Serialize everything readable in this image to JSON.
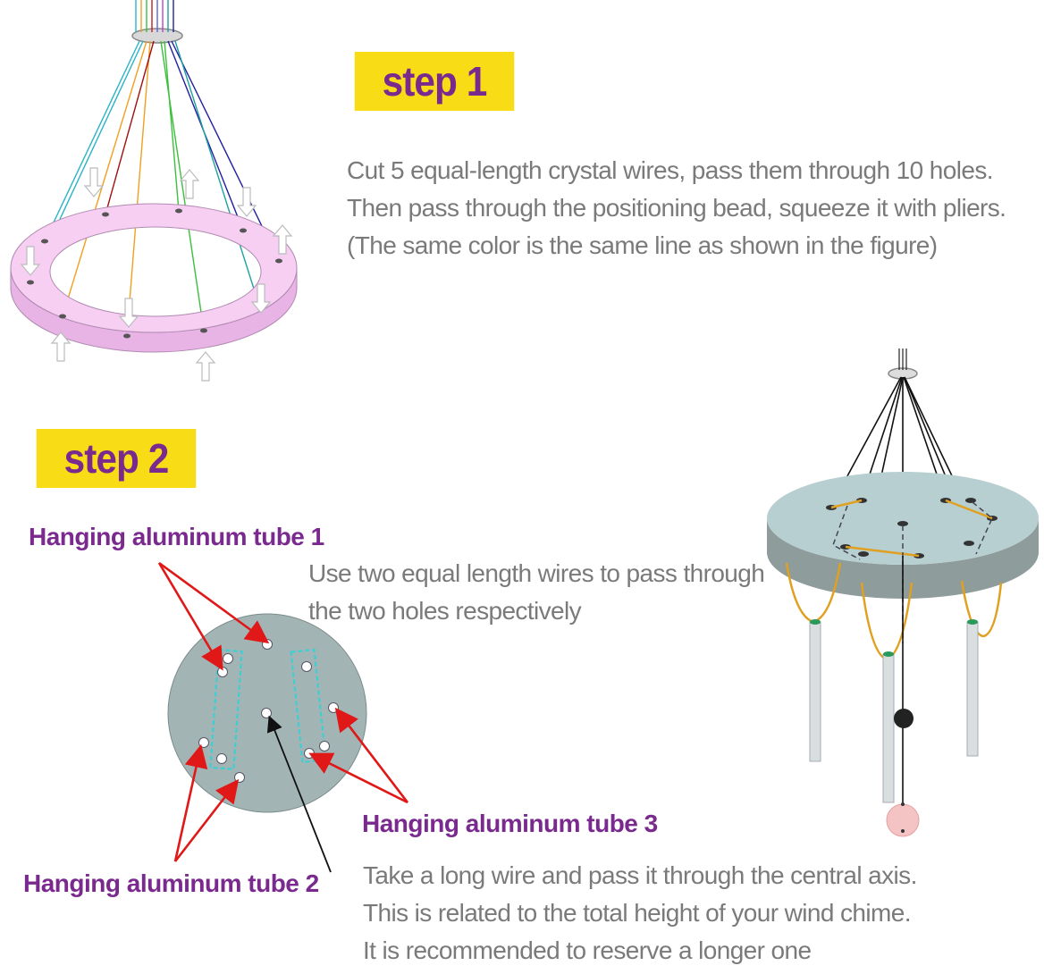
{
  "step1": {
    "badge": "step 1",
    "lines": [
      "Cut 5 equal-length crystal wires, pass them through 10 holes.",
      "Then pass through the positioning bead, squeeze it with pliers.",
      "(The same color is the same line as shown in the figure)"
    ]
  },
  "step2": {
    "badge": "step 2",
    "tube1_label": "Hanging aluminum tube 1",
    "tube2_label": "Hanging aluminum tube 2",
    "tube3_label": "Hanging aluminum tube 3",
    "two_wires_lines": [
      "Use two equal length wires to pass through",
      "the two holes respectively"
    ],
    "central_lines": [
      "Take a long wire and pass it through the central axis.",
      "This is related to the total height of your wind chime.",
      "It is recommended to reserve a longer one"
    ]
  },
  "colors": {
    "badge_bg": "#f8dc16",
    "badge_text": "#7a2a8e",
    "body_text": "#7a7a7a",
    "ring": "#f3c6f0",
    "disc": "#9fb2b3",
    "arrow": "#e01818",
    "dashed_box": "#33d2d8"
  }
}
